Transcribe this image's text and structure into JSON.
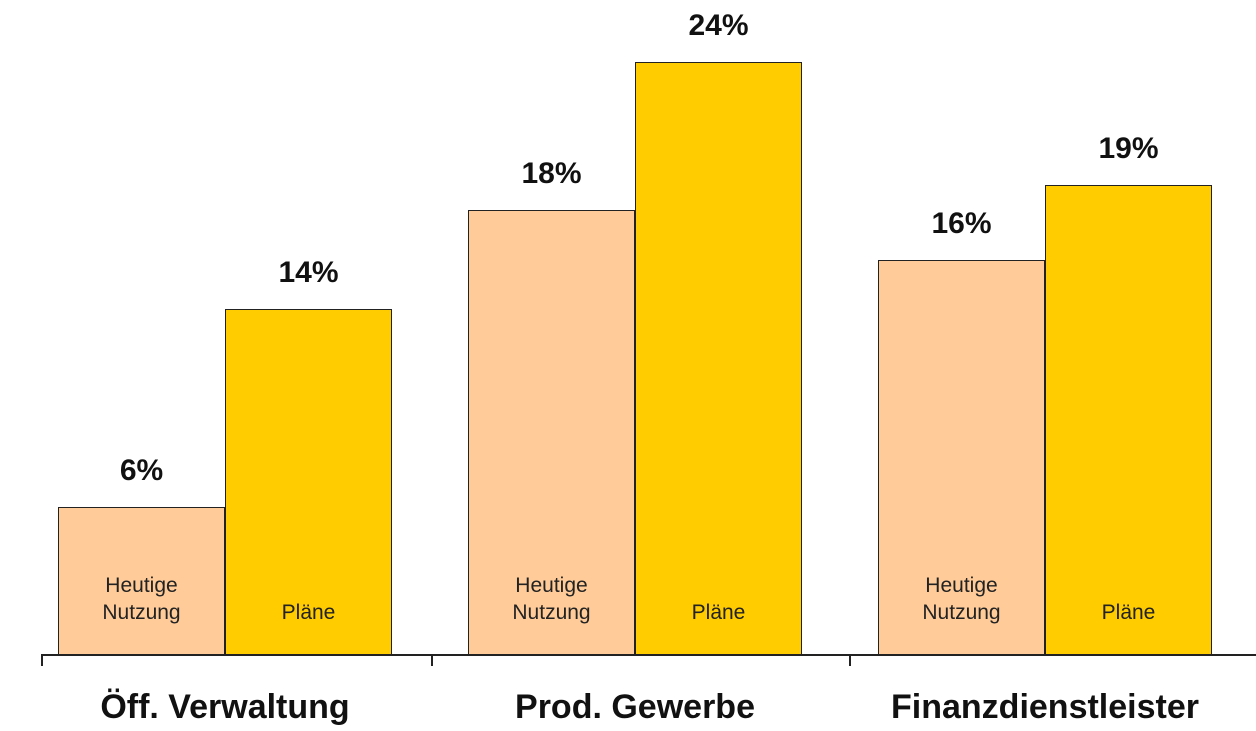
{
  "chart_data": {
    "type": "bar",
    "categories": [
      "Öff. Verwaltung",
      "Prod. Gewerbe",
      "Finanzdienstleister"
    ],
    "series": [
      {
        "name": "Heutige Nutzung",
        "color": "#FFCC99",
        "values": [
          6,
          18,
          16
        ],
        "value_labels": [
          "6%",
          "18%",
          "16%"
        ]
      },
      {
        "name": "Pläne",
        "color": "#FFCC00",
        "values": [
          14,
          24,
          19
        ],
        "value_labels": [
          "14%",
          "24%",
          "19%"
        ]
      }
    ],
    "ylim": [
      0,
      26.5
    ]
  }
}
